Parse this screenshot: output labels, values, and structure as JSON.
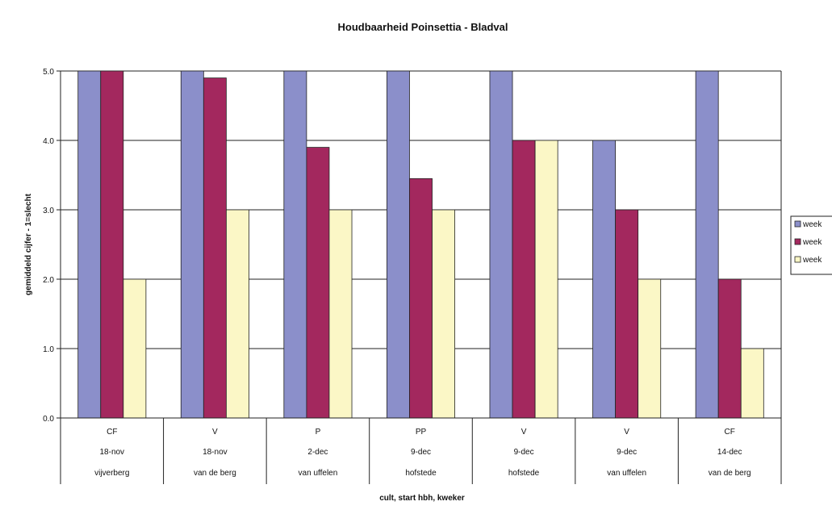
{
  "chart_data": {
    "type": "bar",
    "title": "Houdbaarheid Poinsettia - Bladval",
    "xlabel": "cult, start hbh, kweker",
    "ylabel": "gemiddeld cijfer - 1=slecht",
    "ylim": [
      0,
      5
    ],
    "yticks": [
      "0.0",
      "1.0",
      "2.0",
      "3.0",
      "4.0",
      "5.0"
    ],
    "grid": true,
    "legend_position": "right",
    "categories": [
      [
        "CF",
        "18-nov",
        "vijverberg"
      ],
      [
        "V",
        "18-nov",
        "van de berg"
      ],
      [
        "P",
        "2-dec",
        "van uffelen"
      ],
      [
        "PP",
        "9-dec",
        "hofstede"
      ],
      [
        "V",
        "9-dec",
        "hofstede"
      ],
      [
        "V",
        "9-dec",
        "van uffelen"
      ],
      [
        "CF",
        "14-dec",
        "van de berg"
      ]
    ],
    "series": [
      {
        "name": "week",
        "color": "#8b8fca",
        "values": [
          5.0,
          5.0,
          5.0,
          5.0,
          5.0,
          4.0,
          5.0
        ]
      },
      {
        "name": "week",
        "color": "#a3285e",
        "values": [
          5.0,
          4.9,
          3.9,
          3.45,
          4.0,
          3.0,
          2.0
        ]
      },
      {
        "name": "week",
        "color": "#fbf7c6",
        "values": [
          2.0,
          3.0,
          3.0,
          3.0,
          4.0,
          2.0,
          1.0
        ]
      }
    ]
  }
}
